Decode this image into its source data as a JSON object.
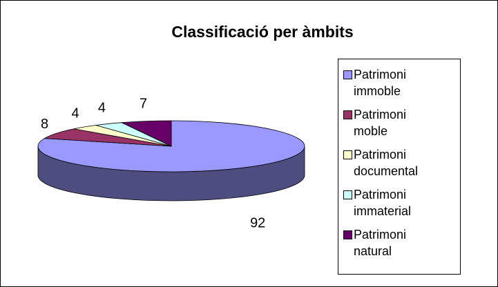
{
  "chart_data": {
    "type": "pie",
    "title": "Classificació per àmbits",
    "categories": [
      "Patrimoni immoble",
      "Patrimoni moble",
      "Patrimoni documental",
      "Patrimoni immaterial",
      "Patrimoni natural"
    ],
    "values": [
      92,
      8,
      4,
      4,
      7
    ],
    "colors": [
      "#9999ff",
      "#993366",
      "#ffffcc",
      "#ccffff",
      "#660066"
    ],
    "legend": "right"
  }
}
